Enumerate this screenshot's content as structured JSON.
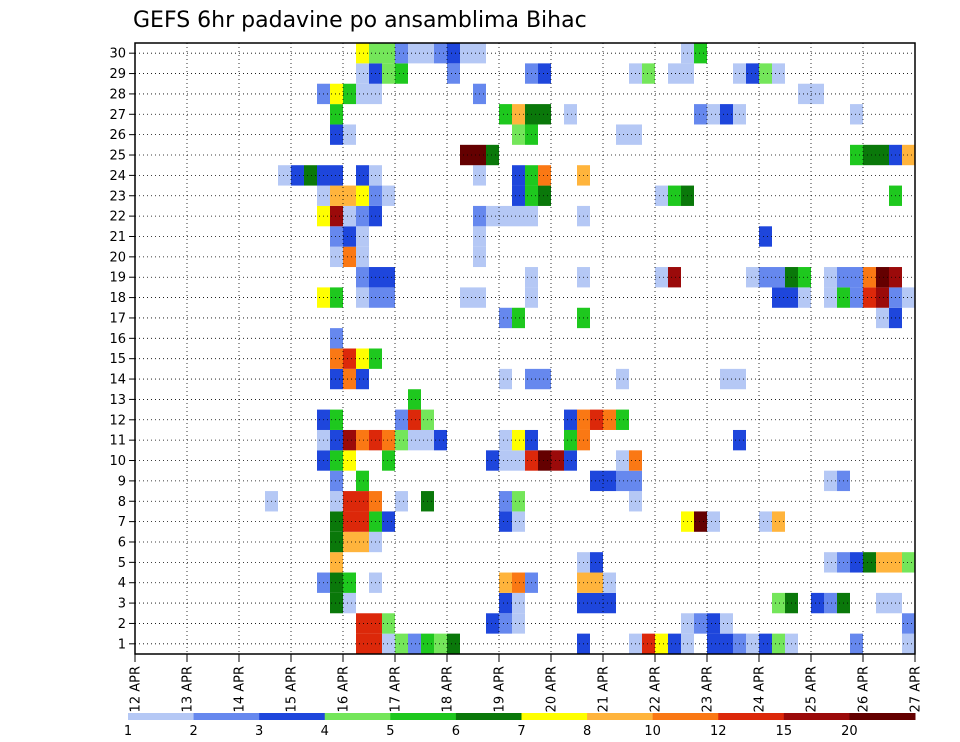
{
  "chart_data": {
    "type": "heatmap",
    "title": "GEFS 6hr padavine po ansamblima Bihac",
    "xlabel": "",
    "ylabel": "",
    "x_ticks": [
      "12 APR",
      "13 APR",
      "14 APR",
      "15 APR",
      "16 APR",
      "17 APR",
      "18 APR",
      "19 APR",
      "20 APR",
      "21 APR",
      "22 APR",
      "23 APR",
      "24 APR",
      "25 APR",
      "26 APR",
      "27 APR"
    ],
    "y_ticks": [
      "1",
      "2",
      "3",
      "4",
      "5",
      "6",
      "7",
      "8",
      "9",
      "10",
      "11",
      "12",
      "13",
      "14",
      "15",
      "16",
      "17",
      "18",
      "19",
      "20",
      "21",
      "22",
      "23",
      "24",
      "25",
      "26",
      "27",
      "28",
      "29",
      "30"
    ],
    "members": 30,
    "time_steps": 60,
    "grid": true,
    "colorbar": {
      "labels": [
        "1",
        "2",
        "3",
        "4",
        "5",
        "6",
        "7",
        "8",
        "10",
        "12",
        "15",
        "20"
      ],
      "colors": [
        "#b5c8f5",
        "#6688ee",
        "#1e46dc",
        "#74e65a",
        "#1ec81e",
        "#0a780a",
        "#ffff00",
        "#ffb43c",
        "#fa7814",
        "#dc280a",
        "#9b0a0a",
        "#640000"
      ]
    },
    "cells": [
      [
        0,
        17,
        9
      ],
      [
        0,
        18,
        9
      ],
      [
        0,
        19,
        0
      ],
      [
        0,
        20,
        3
      ],
      [
        0,
        21,
        1
      ],
      [
        0,
        22,
        4
      ],
      [
        0,
        23,
        3
      ],
      [
        0,
        24,
        5
      ],
      [
        0,
        34,
        2
      ],
      [
        0,
        38,
        0
      ],
      [
        0,
        39,
        9
      ],
      [
        0,
        40,
        6
      ],
      [
        0,
        41,
        2
      ],
      [
        0,
        42,
        0
      ],
      [
        0,
        44,
        2
      ],
      [
        0,
        45,
        2
      ],
      [
        0,
        46,
        1
      ],
      [
        0,
        47,
        0
      ],
      [
        0,
        48,
        2
      ],
      [
        0,
        49,
        3
      ],
      [
        0,
        50,
        0
      ],
      [
        0,
        55,
        1
      ],
      [
        0,
        59,
        0
      ],
      [
        1,
        17,
        9
      ],
      [
        1,
        18,
        9
      ],
      [
        1,
        19,
        3
      ],
      [
        1,
        27,
        2
      ],
      [
        1,
        28,
        1
      ],
      [
        1,
        29,
        0
      ],
      [
        1,
        42,
        0
      ],
      [
        1,
        43,
        1
      ],
      [
        1,
        44,
        2
      ],
      [
        1,
        45,
        0
      ],
      [
        1,
        59,
        1
      ],
      [
        2,
        15,
        5
      ],
      [
        2,
        16,
        0
      ],
      [
        2,
        28,
        2
      ],
      [
        2,
        29,
        0
      ],
      [
        2,
        34,
        2
      ],
      [
        2,
        35,
        2
      ],
      [
        2,
        36,
        2
      ],
      [
        2,
        49,
        3
      ],
      [
        2,
        50,
        5
      ],
      [
        2,
        52,
        2
      ],
      [
        2,
        53,
        1
      ],
      [
        2,
        54,
        5
      ],
      [
        2,
        57,
        0
      ],
      [
        2,
        58,
        0
      ],
      [
        3,
        14,
        1
      ],
      [
        3,
        15,
        5
      ],
      [
        3,
        16,
        4
      ],
      [
        3,
        18,
        0
      ],
      [
        3,
        28,
        7
      ],
      [
        3,
        29,
        8
      ],
      [
        3,
        30,
        1
      ],
      [
        3,
        34,
        7
      ],
      [
        3,
        35,
        7
      ],
      [
        3,
        36,
        0
      ],
      [
        4,
        15,
        7
      ],
      [
        4,
        34,
        0
      ],
      [
        4,
        35,
        2
      ],
      [
        4,
        53,
        0
      ],
      [
        4,
        54,
        1
      ],
      [
        4,
        55,
        2
      ],
      [
        4,
        56,
        5
      ],
      [
        4,
        57,
        7
      ],
      [
        4,
        58,
        7
      ],
      [
        4,
        59,
        3
      ],
      [
        5,
        15,
        5
      ],
      [
        5,
        16,
        7
      ],
      [
        5,
        17,
        7
      ],
      [
        5,
        18,
        0
      ],
      [
        6,
        15,
        5
      ],
      [
        6,
        16,
        9
      ],
      [
        6,
        17,
        9
      ],
      [
        6,
        18,
        4
      ],
      [
        6,
        19,
        2
      ],
      [
        6,
        28,
        2
      ],
      [
        6,
        29,
        0
      ],
      [
        6,
        42,
        6
      ],
      [
        6,
        43,
        11
      ],
      [
        6,
        44,
        0
      ],
      [
        6,
        48,
        0
      ],
      [
        6,
        49,
        7
      ],
      [
        7,
        10,
        0
      ],
      [
        7,
        15,
        0
      ],
      [
        7,
        16,
        9
      ],
      [
        7,
        17,
        9
      ],
      [
        7,
        18,
        8
      ],
      [
        7,
        20,
        0
      ],
      [
        7,
        22,
        5
      ],
      [
        7,
        28,
        1
      ],
      [
        7,
        29,
        3
      ],
      [
        7,
        38,
        0
      ],
      [
        8,
        15,
        1
      ],
      [
        8,
        17,
        4
      ],
      [
        8,
        35,
        2
      ],
      [
        8,
        36,
        2
      ],
      [
        8,
        37,
        1
      ],
      [
        8,
        38,
        1
      ],
      [
        8,
        53,
        0
      ],
      [
        8,
        54,
        1
      ],
      [
        9,
        14,
        2
      ],
      [
        9,
        15,
        4
      ],
      [
        9,
        16,
        6
      ],
      [
        9,
        19,
        4
      ],
      [
        9,
        27,
        2
      ],
      [
        9,
        28,
        0
      ],
      [
        9,
        29,
        0
      ],
      [
        9,
        30,
        9
      ],
      [
        9,
        31,
        11
      ],
      [
        9,
        32,
        10
      ],
      [
        9,
        33,
        2
      ],
      [
        9,
        37,
        0
      ],
      [
        9,
        38,
        8
      ],
      [
        10,
        14,
        0
      ],
      [
        10,
        15,
        2
      ],
      [
        10,
        16,
        10
      ],
      [
        10,
        17,
        8
      ],
      [
        10,
        18,
        9
      ],
      [
        10,
        19,
        8
      ],
      [
        10,
        20,
        3
      ],
      [
        10,
        21,
        0
      ],
      [
        10,
        22,
        0
      ],
      [
        10,
        23,
        2
      ],
      [
        10,
        28,
        0
      ],
      [
        10,
        29,
        6
      ],
      [
        10,
        30,
        2
      ],
      [
        10,
        33,
        4
      ],
      [
        10,
        34,
        8
      ],
      [
        10,
        46,
        2
      ],
      [
        11,
        14,
        2
      ],
      [
        11,
        15,
        4
      ],
      [
        11,
        20,
        1
      ],
      [
        11,
        21,
        9
      ],
      [
        11,
        22,
        3
      ],
      [
        11,
        33,
        2
      ],
      [
        11,
        34,
        8
      ],
      [
        11,
        35,
        9
      ],
      [
        11,
        36,
        8
      ],
      [
        11,
        37,
        4
      ],
      [
        12,
        21,
        4
      ],
      [
        13,
        15,
        2
      ],
      [
        13,
        16,
        8
      ],
      [
        13,
        17,
        2
      ],
      [
        13,
        28,
        0
      ],
      [
        13,
        30,
        1
      ],
      [
        13,
        31,
        1
      ],
      [
        13,
        37,
        0
      ],
      [
        13,
        45,
        0
      ],
      [
        13,
        46,
        0
      ],
      [
        14,
        15,
        8
      ],
      [
        14,
        16,
        9
      ],
      [
        14,
        17,
        6
      ],
      [
        14,
        18,
        4
      ],
      [
        15,
        15,
        1
      ],
      [
        16,
        28,
        1
      ],
      [
        16,
        29,
        4
      ],
      [
        16,
        34,
        4
      ],
      [
        16,
        57,
        0
      ],
      [
        16,
        58,
        2
      ],
      [
        17,
        14,
        6
      ],
      [
        17,
        15,
        4
      ],
      [
        17,
        17,
        0
      ],
      [
        17,
        18,
        1
      ],
      [
        17,
        19,
        1
      ],
      [
        17,
        25,
        0
      ],
      [
        17,
        26,
        0
      ],
      [
        17,
        30,
        0
      ],
      [
        17,
        49,
        2
      ],
      [
        17,
        50,
        2
      ],
      [
        17,
        51,
        0
      ],
      [
        17,
        53,
        0
      ],
      [
        17,
        54,
        4
      ],
      [
        17,
        55,
        1
      ],
      [
        17,
        56,
        9
      ],
      [
        17,
        57,
        10
      ],
      [
        17,
        58,
        1
      ],
      [
        17,
        59,
        0
      ],
      [
        18,
        17,
        1
      ],
      [
        18,
        18,
        2
      ],
      [
        18,
        19,
        2
      ],
      [
        18,
        30,
        0
      ],
      [
        18,
        34,
        0
      ],
      [
        18,
        40,
        0
      ],
      [
        18,
        41,
        10
      ],
      [
        18,
        47,
        0
      ],
      [
        18,
        48,
        1
      ],
      [
        18,
        49,
        1
      ],
      [
        18,
        50,
        5
      ],
      [
        18,
        51,
        4
      ],
      [
        18,
        53,
        0
      ],
      [
        18,
        54,
        1
      ],
      [
        18,
        55,
        1
      ],
      [
        18,
        56,
        8
      ],
      [
        18,
        57,
        11
      ],
      [
        18,
        58,
        10
      ],
      [
        19,
        15,
        0
      ],
      [
        19,
        16,
        8
      ],
      [
        19,
        17,
        0
      ],
      [
        19,
        26,
        0
      ],
      [
        20,
        15,
        1
      ],
      [
        20,
        16,
        2
      ],
      [
        20,
        17,
        0
      ],
      [
        20,
        26,
        0
      ],
      [
        20,
        48,
        2
      ],
      [
        21,
        14,
        6
      ],
      [
        21,
        15,
        10
      ],
      [
        21,
        16,
        0
      ],
      [
        21,
        17,
        1
      ],
      [
        21,
        18,
        2
      ],
      [
        21,
        26,
        1
      ],
      [
        21,
        27,
        0
      ],
      [
        21,
        28,
        0
      ],
      [
        21,
        29,
        0
      ],
      [
        21,
        30,
        0
      ],
      [
        21,
        34,
        0
      ],
      [
        22,
        14,
        0
      ],
      [
        22,
        15,
        7
      ],
      [
        22,
        16,
        7
      ],
      [
        22,
        17,
        6
      ],
      [
        22,
        18,
        1
      ],
      [
        22,
        19,
        0
      ],
      [
        22,
        29,
        2
      ],
      [
        22,
        30,
        4
      ],
      [
        22,
        31,
        5
      ],
      [
        22,
        40,
        0
      ],
      [
        22,
        41,
        4
      ],
      [
        22,
        42,
        5
      ],
      [
        22,
        58,
        4
      ],
      [
        23,
        11,
        0
      ],
      [
        23,
        12,
        2
      ],
      [
        23,
        13,
        5
      ],
      [
        23,
        14,
        2
      ],
      [
        23,
        15,
        2
      ],
      [
        23,
        17,
        2
      ],
      [
        23,
        18,
        0
      ],
      [
        23,
        26,
        0
      ],
      [
        23,
        29,
        2
      ],
      [
        23,
        30,
        4
      ],
      [
        23,
        31,
        8
      ],
      [
        23,
        34,
        7
      ],
      [
        24,
        25,
        11
      ],
      [
        24,
        26,
        11
      ],
      [
        24,
        27,
        5
      ],
      [
        24,
        55,
        4
      ],
      [
        24,
        56,
        5
      ],
      [
        24,
        57,
        5
      ],
      [
        24,
        58,
        2
      ],
      [
        24,
        59,
        7
      ],
      [
        25,
        15,
        2
      ],
      [
        25,
        16,
        0
      ],
      [
        25,
        29,
        3
      ],
      [
        25,
        30,
        4
      ],
      [
        25,
        37,
        0
      ],
      [
        25,
        38,
        0
      ],
      [
        26,
        15,
        4
      ],
      [
        26,
        28,
        4
      ],
      [
        26,
        29,
        7
      ],
      [
        26,
        30,
        5
      ],
      [
        26,
        31,
        5
      ],
      [
        26,
        33,
        0
      ],
      [
        26,
        43,
        1
      ],
      [
        26,
        44,
        0
      ],
      [
        26,
        45,
        2
      ],
      [
        26,
        46,
        0
      ],
      [
        26,
        55,
        0
      ],
      [
        27,
        14,
        1
      ],
      [
        27,
        15,
        6
      ],
      [
        27,
        16,
        4
      ],
      [
        27,
        17,
        0
      ],
      [
        27,
        18,
        0
      ],
      [
        27,
        26,
        1
      ],
      [
        27,
        51,
        0
      ],
      [
        27,
        52,
        0
      ],
      [
        28,
        17,
        0
      ],
      [
        28,
        18,
        2
      ],
      [
        28,
        19,
        3
      ],
      [
        28,
        20,
        4
      ],
      [
        28,
        24,
        1
      ],
      [
        28,
        30,
        1
      ],
      [
        28,
        31,
        2
      ],
      [
        28,
        38,
        0
      ],
      [
        28,
        39,
        3
      ],
      [
        28,
        41,
        0
      ],
      [
        28,
        42,
        0
      ],
      [
        28,
        46,
        0
      ],
      [
        28,
        47,
        2
      ],
      [
        28,
        48,
        3
      ],
      [
        28,
        49,
        0
      ],
      [
        29,
        17,
        6
      ],
      [
        29,
        18,
        3
      ],
      [
        29,
        19,
        3
      ],
      [
        29,
        20,
        1
      ],
      [
        29,
        21,
        0
      ],
      [
        29,
        22,
        0
      ],
      [
        29,
        23,
        1
      ],
      [
        29,
        24,
        2
      ],
      [
        29,
        25,
        0
      ],
      [
        29,
        26,
        0
      ],
      [
        29,
        42,
        0
      ],
      [
        29,
        43,
        4
      ]
    ]
  }
}
